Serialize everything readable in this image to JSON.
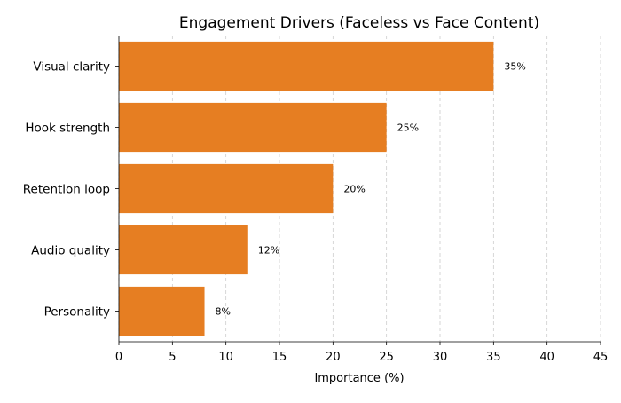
{
  "chart_data": {
    "type": "bar",
    "orientation": "horizontal",
    "title": "Engagement Drivers (Faceless vs Face Content)",
    "xlabel": "Importance (%)",
    "ylabel": "",
    "categories": [
      "Visual clarity",
      "Hook strength",
      "Retention loop",
      "Audio quality",
      "Personality"
    ],
    "values": [
      35,
      25,
      20,
      12,
      8
    ],
    "data_labels": [
      "35%",
      "25%",
      "20%",
      "12%",
      "8%"
    ],
    "xlim": [
      0,
      45
    ],
    "xticks": [
      0,
      5,
      10,
      15,
      20,
      25,
      30,
      35,
      40,
      45
    ],
    "grid": "vertical dashed",
    "bar_color": "#E67E22"
  }
}
